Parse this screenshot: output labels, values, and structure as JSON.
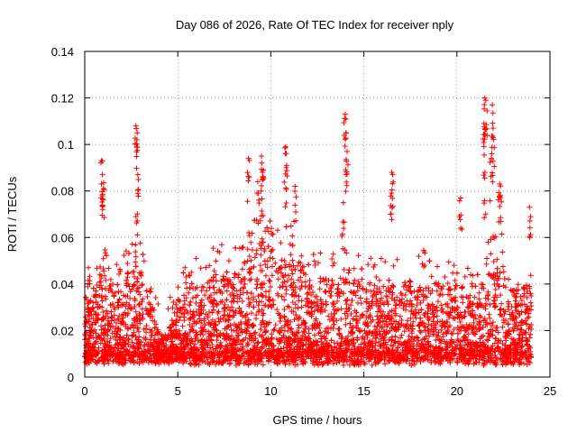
{
  "chart_data": {
    "type": "scatter",
    "title": "Day 086 of 2026, Rate Of TEC Index for receiver nply",
    "xlabel": "GPS time / hours",
    "ylabel": "ROTI / TECUs",
    "xlim": [
      0,
      25
    ],
    "ylim": [
      0,
      0.14
    ],
    "x_ticks": [
      0,
      5,
      10,
      15,
      20,
      25
    ],
    "x_tick_labels": [
      "0",
      "5",
      "10",
      "15",
      "20",
      "25"
    ],
    "y_ticks": [
      0,
      0.02,
      0.04,
      0.06,
      0.08,
      0.1,
      0.12,
      0.14
    ],
    "y_tick_labels": [
      "0",
      "0.02",
      "0.04",
      "0.06",
      "0.08",
      "0.1",
      "0.12",
      "0.14"
    ],
    "grid": true,
    "marker": "+",
    "series": [
      {
        "name": "ROTI",
        "color": "#ff0000",
        "envelope": {
          "x": [
            0,
            0.5,
            1,
            1.5,
            2,
            2.5,
            2.8,
            3,
            3.5,
            4,
            4.5,
            5,
            5.5,
            6,
            6.5,
            7,
            7.5,
            8,
            8.5,
            9,
            9.5,
            10,
            10.5,
            11,
            11.5,
            12,
            12.5,
            13,
            13.5,
            14,
            14.5,
            15,
            15.5,
            16,
            16.5,
            17,
            17.5,
            18,
            18.5,
            19,
            19.5,
            20,
            20.5,
            21,
            21.5,
            22,
            22.5,
            23,
            23.5,
            24
          ],
          "typical_max": [
            0.03,
            0.035,
            0.05,
            0.04,
            0.04,
            0.045,
            0.055,
            0.045,
            0.035,
            0.02,
            0.02,
            0.035,
            0.04,
            0.04,
            0.04,
            0.045,
            0.045,
            0.045,
            0.05,
            0.055,
            0.06,
            0.055,
            0.05,
            0.055,
            0.05,
            0.045,
            0.04,
            0.045,
            0.04,
            0.05,
            0.04,
            0.045,
            0.04,
            0.04,
            0.04,
            0.04,
            0.04,
            0.045,
            0.04,
            0.04,
            0.04,
            0.04,
            0.035,
            0.035,
            0.045,
            0.05,
            0.045,
            0.04,
            0.04,
            0.04
          ]
        },
        "peaks": [
          {
            "x": 0.2,
            "y": 0.047
          },
          {
            "x": 0.9,
            "y": 0.093
          },
          {
            "x": 0.95,
            "y": 0.087
          },
          {
            "x": 1.0,
            "y": 0.081
          },
          {
            "x": 2.75,
            "y": 0.108
          },
          {
            "x": 2.8,
            "y": 0.102
          },
          {
            "x": 2.85,
            "y": 0.087
          },
          {
            "x": 2.75,
            "y": 0.069
          },
          {
            "x": 8.8,
            "y": 0.094
          },
          {
            "x": 9.5,
            "y": 0.095
          },
          {
            "x": 9.6,
            "y": 0.089
          },
          {
            "x": 9.3,
            "y": 0.084
          },
          {
            "x": 10.8,
            "y": 0.099
          },
          {
            "x": 10.85,
            "y": 0.091
          },
          {
            "x": 11.3,
            "y": 0.082
          },
          {
            "x": 14.0,
            "y": 0.113
          },
          {
            "x": 14.05,
            "y": 0.105
          },
          {
            "x": 14.1,
            "y": 0.097
          },
          {
            "x": 13.9,
            "y": 0.075
          },
          {
            "x": 16.5,
            "y": 0.088
          },
          {
            "x": 16.55,
            "y": 0.087
          },
          {
            "x": 20.2,
            "y": 0.077
          },
          {
            "x": 21.5,
            "y": 0.12
          },
          {
            "x": 21.55,
            "y": 0.119
          },
          {
            "x": 21.45,
            "y": 0.109
          },
          {
            "x": 21.5,
            "y": 0.088
          },
          {
            "x": 21.9,
            "y": 0.117
          },
          {
            "x": 21.95,
            "y": 0.103
          },
          {
            "x": 21.85,
            "y": 0.094
          },
          {
            "x": 22.3,
            "y": 0.083
          },
          {
            "x": 22.35,
            "y": 0.078
          },
          {
            "x": 23.9,
            "y": 0.073
          }
        ]
      }
    ]
  }
}
